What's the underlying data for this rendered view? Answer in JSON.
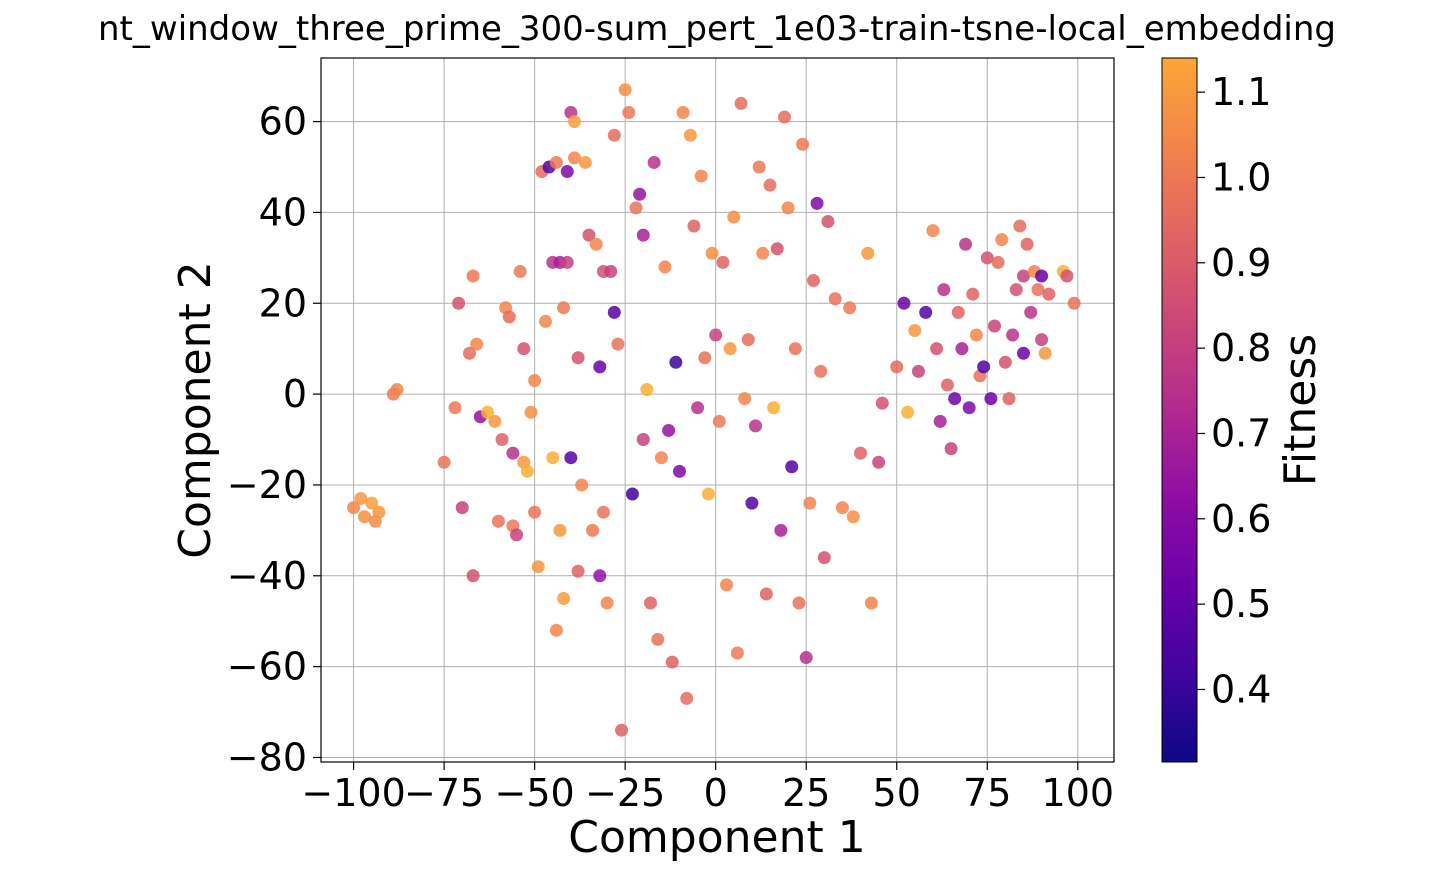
{
  "chart_data": {
    "type": "scatter",
    "title": "nt_window_three_prime_300-sum_pert_1e03-train-tsne-local_embedding",
    "xlabel": "Component 1",
    "ylabel": "Component 2",
    "xlim": [
      -109,
      110
    ],
    "ylim": [
      -81,
      74
    ],
    "xticks": [
      -100,
      -75,
      -50,
      -25,
      0,
      25,
      50,
      75,
      100
    ],
    "yticks": [
      -80,
      -60,
      -40,
      -20,
      0,
      20,
      40,
      60
    ],
    "xtick_labels": [
      "−100",
      "−75",
      "−50",
      "−25",
      "0",
      "25",
      "50",
      "75",
      "100"
    ],
    "ytick_labels": [
      "−80",
      "−60",
      "−40",
      "−20",
      "0",
      "20",
      "40",
      "60"
    ],
    "grid": true,
    "colormap": "plasma",
    "colorbar": {
      "label": "Fitness",
      "range": [
        0.315,
        1.14
      ],
      "ticks": [
        0.4,
        0.5,
        0.6,
        0.7,
        0.8,
        0.9,
        1.0,
        1.1
      ],
      "tick_labels": [
        "0.4",
        "0.5",
        "0.6",
        "0.7",
        "0.8",
        "0.9",
        "1.0",
        "1.1"
      ]
    },
    "points": [
      [
        -100,
        -25,
        0.95
      ],
      [
        -98,
        -23,
        1.0
      ],
      [
        -97,
        -27,
        0.98
      ],
      [
        -95,
        -24,
        1.02
      ],
      [
        -94,
        -28,
        0.97
      ],
      [
        -93,
        -26,
        1.0
      ],
      [
        -89,
        0,
        0.92
      ],
      [
        -88,
        1,
        0.95
      ],
      [
        -75,
        -15,
        0.9
      ],
      [
        -72,
        -3,
        0.92
      ],
      [
        -71,
        20,
        0.8
      ],
      [
        -70,
        -25,
        0.75
      ],
      [
        -68,
        9,
        0.88
      ],
      [
        -67,
        26,
        0.92
      ],
      [
        -66,
        11,
        0.95
      ],
      [
        -67,
        -40,
        0.8
      ],
      [
        -65,
        -5,
        0.6
      ],
      [
        -63,
        -4,
        1.05
      ],
      [
        -61,
        -6,
        1.0
      ],
      [
        -60,
        -28,
        0.9
      ],
      [
        -59,
        -10,
        0.85
      ],
      [
        -58,
        19,
        0.95
      ],
      [
        -57,
        17,
        0.88
      ],
      [
        -56,
        -29,
        0.92
      ],
      [
        -56,
        -13,
        0.7
      ],
      [
        -55,
        -31,
        0.75
      ],
      [
        -54,
        27,
        0.92
      ],
      [
        -53,
        10,
        0.8
      ],
      [
        -53,
        -15,
        1.0
      ],
      [
        -52,
        -17,
        1.05
      ],
      [
        -51,
        -4,
        0.98
      ],
      [
        -50,
        -26,
        0.9
      ],
      [
        -50,
        3,
        0.95
      ],
      [
        -49,
        -38,
        1.0
      ],
      [
        -48,
        49,
        0.88
      ],
      [
        -47,
        16,
        0.95
      ],
      [
        -46,
        50,
        0.45
      ],
      [
        -45,
        29,
        0.7
      ],
      [
        -45,
        -14,
        1.05
      ],
      [
        -44,
        51,
        0.92
      ],
      [
        -44,
        -52,
        0.95
      ],
      [
        -43,
        29,
        0.65
      ],
      [
        -43,
        -30,
        1.0
      ],
      [
        -42,
        19,
        0.92
      ],
      [
        -42,
        -45,
        1.02
      ],
      [
        -41,
        49,
        0.55
      ],
      [
        -41,
        29,
        0.75
      ],
      [
        -40,
        62,
        0.7
      ],
      [
        -40,
        -14,
        0.45
      ],
      [
        -39,
        60,
        1.02
      ],
      [
        -39,
        52,
        0.95
      ],
      [
        -38,
        -39,
        0.85
      ],
      [
        -38,
        8,
        0.8
      ],
      [
        -37,
        -20,
        0.95
      ],
      [
        -36,
        51,
        1.0
      ],
      [
        -35,
        35,
        0.8
      ],
      [
        -34,
        -30,
        0.92
      ],
      [
        -33,
        33,
        0.95
      ],
      [
        -32,
        6,
        0.5
      ],
      [
        -32,
        -40,
        0.6
      ],
      [
        -31,
        27,
        0.8
      ],
      [
        -31,
        -26,
        0.9
      ],
      [
        -30,
        -46,
        0.95
      ],
      [
        -29,
        27,
        0.75
      ],
      [
        -28,
        57,
        0.88
      ],
      [
        -28,
        18,
        0.45
      ],
      [
        -27,
        11,
        0.9
      ],
      [
        -26,
        -74,
        0.85
      ],
      [
        -25,
        67,
        0.98
      ],
      [
        -24,
        62,
        0.92
      ],
      [
        -23,
        -22,
        0.4
      ],
      [
        -22,
        41,
        0.9
      ],
      [
        -21,
        44,
        0.6
      ],
      [
        -20,
        -10,
        0.75
      ],
      [
        -20,
        35,
        0.65
      ],
      [
        -19,
        1,
        1.05
      ],
      [
        -18,
        -46,
        0.85
      ],
      [
        -17,
        51,
        0.7
      ],
      [
        -16,
        -54,
        0.9
      ],
      [
        -15,
        -14,
        0.95
      ],
      [
        -14,
        28,
        0.95
      ],
      [
        -13,
        -8,
        0.6
      ],
      [
        -12,
        -59,
        0.85
      ],
      [
        -11,
        7,
        0.4
      ],
      [
        -10,
        -17,
        0.55
      ],
      [
        -9,
        62,
        0.95
      ],
      [
        -8,
        -67,
        0.88
      ],
      [
        -7,
        57,
        1.0
      ],
      [
        -6,
        37,
        0.85
      ],
      [
        -5,
        -3,
        0.7
      ],
      [
        -4,
        48,
        0.95
      ],
      [
        -3,
        8,
        0.9
      ],
      [
        -2,
        -22,
        1.05
      ],
      [
        -1,
        31,
        0.98
      ],
      [
        0,
        13,
        0.75
      ],
      [
        1,
        -6,
        0.92
      ],
      [
        2,
        29,
        0.85
      ],
      [
        3,
        -42,
        0.95
      ],
      [
        4,
        10,
        1.0
      ],
      [
        5,
        39,
        0.98
      ],
      [
        6,
        -57,
        0.92
      ],
      [
        7,
        64,
        0.88
      ],
      [
        8,
        -1,
        0.95
      ],
      [
        9,
        12,
        0.88
      ],
      [
        10,
        -24,
        0.45
      ],
      [
        11,
        -7,
        0.7
      ],
      [
        12,
        50,
        0.92
      ],
      [
        13,
        31,
        0.95
      ],
      [
        14,
        -44,
        0.85
      ],
      [
        15,
        46,
        0.88
      ],
      [
        16,
        -3,
        1.05
      ],
      [
        17,
        32,
        0.8
      ],
      [
        18,
        -30,
        0.65
      ],
      [
        19,
        61,
        0.88
      ],
      [
        20,
        41,
        0.95
      ],
      [
        21,
        -16,
        0.45
      ],
      [
        22,
        10,
        0.9
      ],
      [
        23,
        -46,
        0.9
      ],
      [
        24,
        55,
        0.92
      ],
      [
        25,
        -58,
        0.7
      ],
      [
        26,
        -24,
        0.95
      ],
      [
        27,
        25,
        0.85
      ],
      [
        28,
        42,
        0.55
      ],
      [
        29,
        5,
        0.9
      ],
      [
        30,
        -36,
        0.8
      ],
      [
        31,
        38,
        0.8
      ],
      [
        33,
        21,
        0.9
      ],
      [
        35,
        -25,
        0.95
      ],
      [
        37,
        19,
        0.92
      ],
      [
        38,
        -27,
        0.98
      ],
      [
        40,
        -13,
        0.85
      ],
      [
        42,
        31,
        1.0
      ],
      [
        43,
        -46,
        0.95
      ],
      [
        45,
        -15,
        0.75
      ],
      [
        46,
        -2,
        0.8
      ],
      [
        50,
        6,
        0.88
      ],
      [
        52,
        20,
        0.5
      ],
      [
        53,
        -4,
        1.05
      ],
      [
        55,
        14,
        1.0
      ],
      [
        56,
        5,
        0.75
      ],
      [
        58,
        18,
        0.45
      ],
      [
        60,
        36,
        0.95
      ],
      [
        61,
        10,
        0.8
      ],
      [
        62,
        -6,
        0.65
      ],
      [
        63,
        23,
        0.7
      ],
      [
        64,
        2,
        0.85
      ],
      [
        65,
        -12,
        0.75
      ],
      [
        66,
        -1,
        0.5
      ],
      [
        67,
        18,
        0.85
      ],
      [
        68,
        10,
        0.65
      ],
      [
        69,
        33,
        0.7
      ],
      [
        70,
        -3,
        0.55
      ],
      [
        71,
        22,
        0.85
      ],
      [
        72,
        13,
        0.95
      ],
      [
        73,
        4,
        0.9
      ],
      [
        74,
        6,
        0.45
      ],
      [
        75,
        30,
        0.8
      ],
      [
        76,
        -1,
        0.5
      ],
      [
        77,
        15,
        0.75
      ],
      [
        78,
        29,
        0.88
      ],
      [
        79,
        34,
        0.95
      ],
      [
        80,
        7,
        0.8
      ],
      [
        81,
        -1,
        0.85
      ],
      [
        82,
        13,
        0.7
      ],
      [
        83,
        23,
        0.8
      ],
      [
        84,
        37,
        0.88
      ],
      [
        85,
        26,
        0.75
      ],
      [
        85,
        9,
        0.5
      ],
      [
        86,
        33,
        0.85
      ],
      [
        87,
        18,
        0.7
      ],
      [
        88,
        27,
        0.95
      ],
      [
        89,
        23,
        0.9
      ],
      [
        90,
        26,
        0.5
      ],
      [
        90,
        12,
        0.75
      ],
      [
        91,
        9,
        1.0
      ],
      [
        92,
        22,
        0.85
      ],
      [
        96,
        27,
        1.05
      ],
      [
        97,
        26,
        0.8
      ],
      [
        99,
        20,
        0.9
      ]
    ]
  }
}
